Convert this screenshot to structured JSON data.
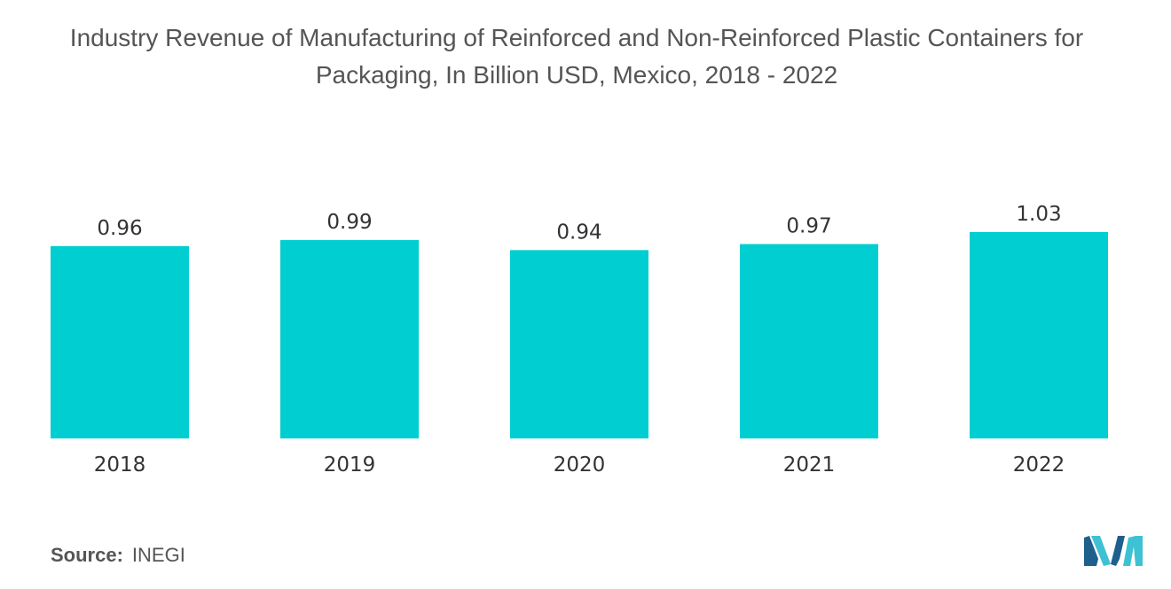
{
  "chart_data": {
    "type": "bar",
    "title": "Industry Revenue of Manufacturing of Reinforced and Non-Reinforced Plastic Containers for\nPackaging, In Billion USD, Mexico, 2018 - 2022",
    "categories": [
      "2018",
      "2019",
      "2020",
      "2021",
      "2022"
    ],
    "values": [
      0.96,
      0.99,
      0.94,
      0.97,
      1.03
    ],
    "value_labels": [
      "0.96",
      "0.99",
      "0.94",
      "0.97",
      "1.03"
    ],
    "xlabel": "",
    "ylabel": "",
    "ylim": [
      0,
      1.03
    ],
    "grid": false,
    "bar_color": "#00CED1"
  },
  "source": {
    "label": "Source:",
    "value": "INEGI"
  },
  "logo": {
    "icon": "mordor-intelligence-logo-icon",
    "colors": [
      "#1E5F8C",
      "#3EC1D3"
    ]
  }
}
